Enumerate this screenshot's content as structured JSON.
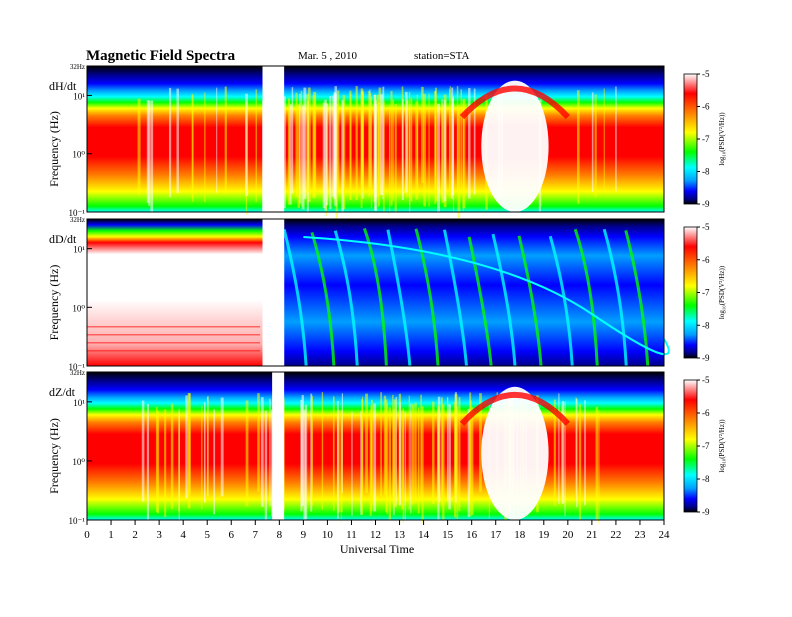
{
  "header": {
    "title": "Magnetic  Field  Spectra",
    "date": "Mar. 5  , 2010",
    "station": "station=STA"
  },
  "colors": {
    "scale": [
      "#000000",
      "#00008b",
      "#0000ff",
      "#00a0ff",
      "#00ffff",
      "#00ff00",
      "#ffff00",
      "#ff8000",
      "#ff0000",
      "#ffffff"
    ]
  },
  "chart_data": [
    {
      "type": "heatmap",
      "component": "dH/dt",
      "xlabel": "Universal Time",
      "ylabel": "Frequency  (Hz)",
      "x_ticks": [
        0,
        1,
        2,
        3,
        4,
        5,
        6,
        7,
        8,
        9,
        10,
        11,
        12,
        13,
        14,
        15,
        16,
        17,
        18,
        19,
        20,
        21,
        22,
        23,
        24
      ],
      "xlim": [
        0,
        24
      ],
      "ylim": [
        0.1,
        32
      ],
      "y_scale": "log",
      "y_tick_labels": [
        "32Hz",
        "10¹",
        "10⁰",
        "10⁻¹"
      ],
      "colorbar": {
        "label": "log₁₀(PSD(V²/Hz))",
        "ticks": [
          -5,
          -6,
          -7,
          -8,
          -9
        ],
        "range": [
          -9,
          -5
        ]
      },
      "data_gaps": [
        [
          7.3,
          8.2
        ]
      ]
    },
    {
      "type": "heatmap",
      "component": "dD/dt",
      "xlabel": "Universal Time",
      "ylabel": "Frequency  (Hz)",
      "x_ticks": [
        0,
        1,
        2,
        3,
        4,
        5,
        6,
        7,
        8,
        9,
        10,
        11,
        12,
        13,
        14,
        15,
        16,
        17,
        18,
        19,
        20,
        21,
        22,
        23,
        24
      ],
      "xlim": [
        0,
        24
      ],
      "ylim": [
        0.1,
        32
      ],
      "y_scale": "log",
      "y_tick_labels": [
        "32Hz",
        "10¹",
        "10⁰",
        "10⁻¹"
      ],
      "colorbar": {
        "label": "log₁₀(PSD(V²/Hz))",
        "ticks": [
          -5,
          -6,
          -7,
          -8,
          -9
        ],
        "range": [
          -9,
          -5
        ]
      },
      "data_gaps": [
        [
          7.3,
          8.2
        ]
      ]
    },
    {
      "type": "heatmap",
      "component": "dZ/dt",
      "xlabel": "Universal Time",
      "ylabel": "Frequency  (Hz)",
      "x_ticks": [
        0,
        1,
        2,
        3,
        4,
        5,
        6,
        7,
        8,
        9,
        10,
        11,
        12,
        13,
        14,
        15,
        16,
        17,
        18,
        19,
        20,
        21,
        22,
        23,
        24
      ],
      "xlim": [
        0,
        24
      ],
      "ylim": [
        0.1,
        32
      ],
      "y_scale": "log",
      "y_tick_labels": [
        "32Hz",
        "10¹",
        "10⁰",
        "10⁻¹"
      ],
      "colorbar": {
        "label": "log₁₀(PSD(V²/Hz))",
        "ticks": [
          -5,
          -6,
          -7,
          -8,
          -9
        ],
        "range": [
          -9,
          -5
        ]
      },
      "data_gaps": [
        [
          7.7,
          8.2
        ]
      ]
    }
  ]
}
